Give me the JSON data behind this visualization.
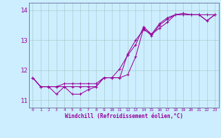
{
  "xlabel": "Windchill (Refroidissement éolien,°C)",
  "bg_color": "#cceeff",
  "line_color": "#990099",
  "grid_color": "#aacccc",
  "axis_color": "#666699",
  "xlim": [
    -0.5,
    23.5
  ],
  "ylim": [
    10.75,
    14.25
  ],
  "xticks": [
    0,
    1,
    2,
    3,
    4,
    5,
    6,
    7,
    8,
    9,
    10,
    11,
    12,
    13,
    14,
    15,
    16,
    17,
    18,
    19,
    20,
    21,
    22,
    23
  ],
  "yticks": [
    11,
    12,
    13,
    14
  ],
  "series1": [
    11.75,
    11.45,
    11.45,
    11.45,
    11.45,
    11.45,
    11.45,
    11.45,
    11.45,
    11.75,
    11.75,
    11.75,
    11.85,
    12.45,
    13.4,
    13.15,
    13.5,
    13.7,
    13.85,
    13.85,
    13.85,
    13.85,
    13.85,
    13.85
  ],
  "series2": [
    11.75,
    11.45,
    11.45,
    11.2,
    11.45,
    11.2,
    11.2,
    11.35,
    11.45,
    11.75,
    11.75,
    12.05,
    12.5,
    12.85,
    13.45,
    13.2,
    13.4,
    13.6,
    13.85,
    13.9,
    13.85,
    13.85,
    13.65,
    13.85
  ],
  "series3": [
    11.75,
    11.45,
    11.45,
    11.45,
    11.55,
    11.55,
    11.55,
    11.55,
    11.55,
    11.75,
    11.75,
    11.75,
    12.55,
    13.0,
    13.35,
    13.2,
    13.55,
    13.75,
    13.85,
    13.85,
    13.85,
    13.85,
    13.65,
    13.85
  ]
}
